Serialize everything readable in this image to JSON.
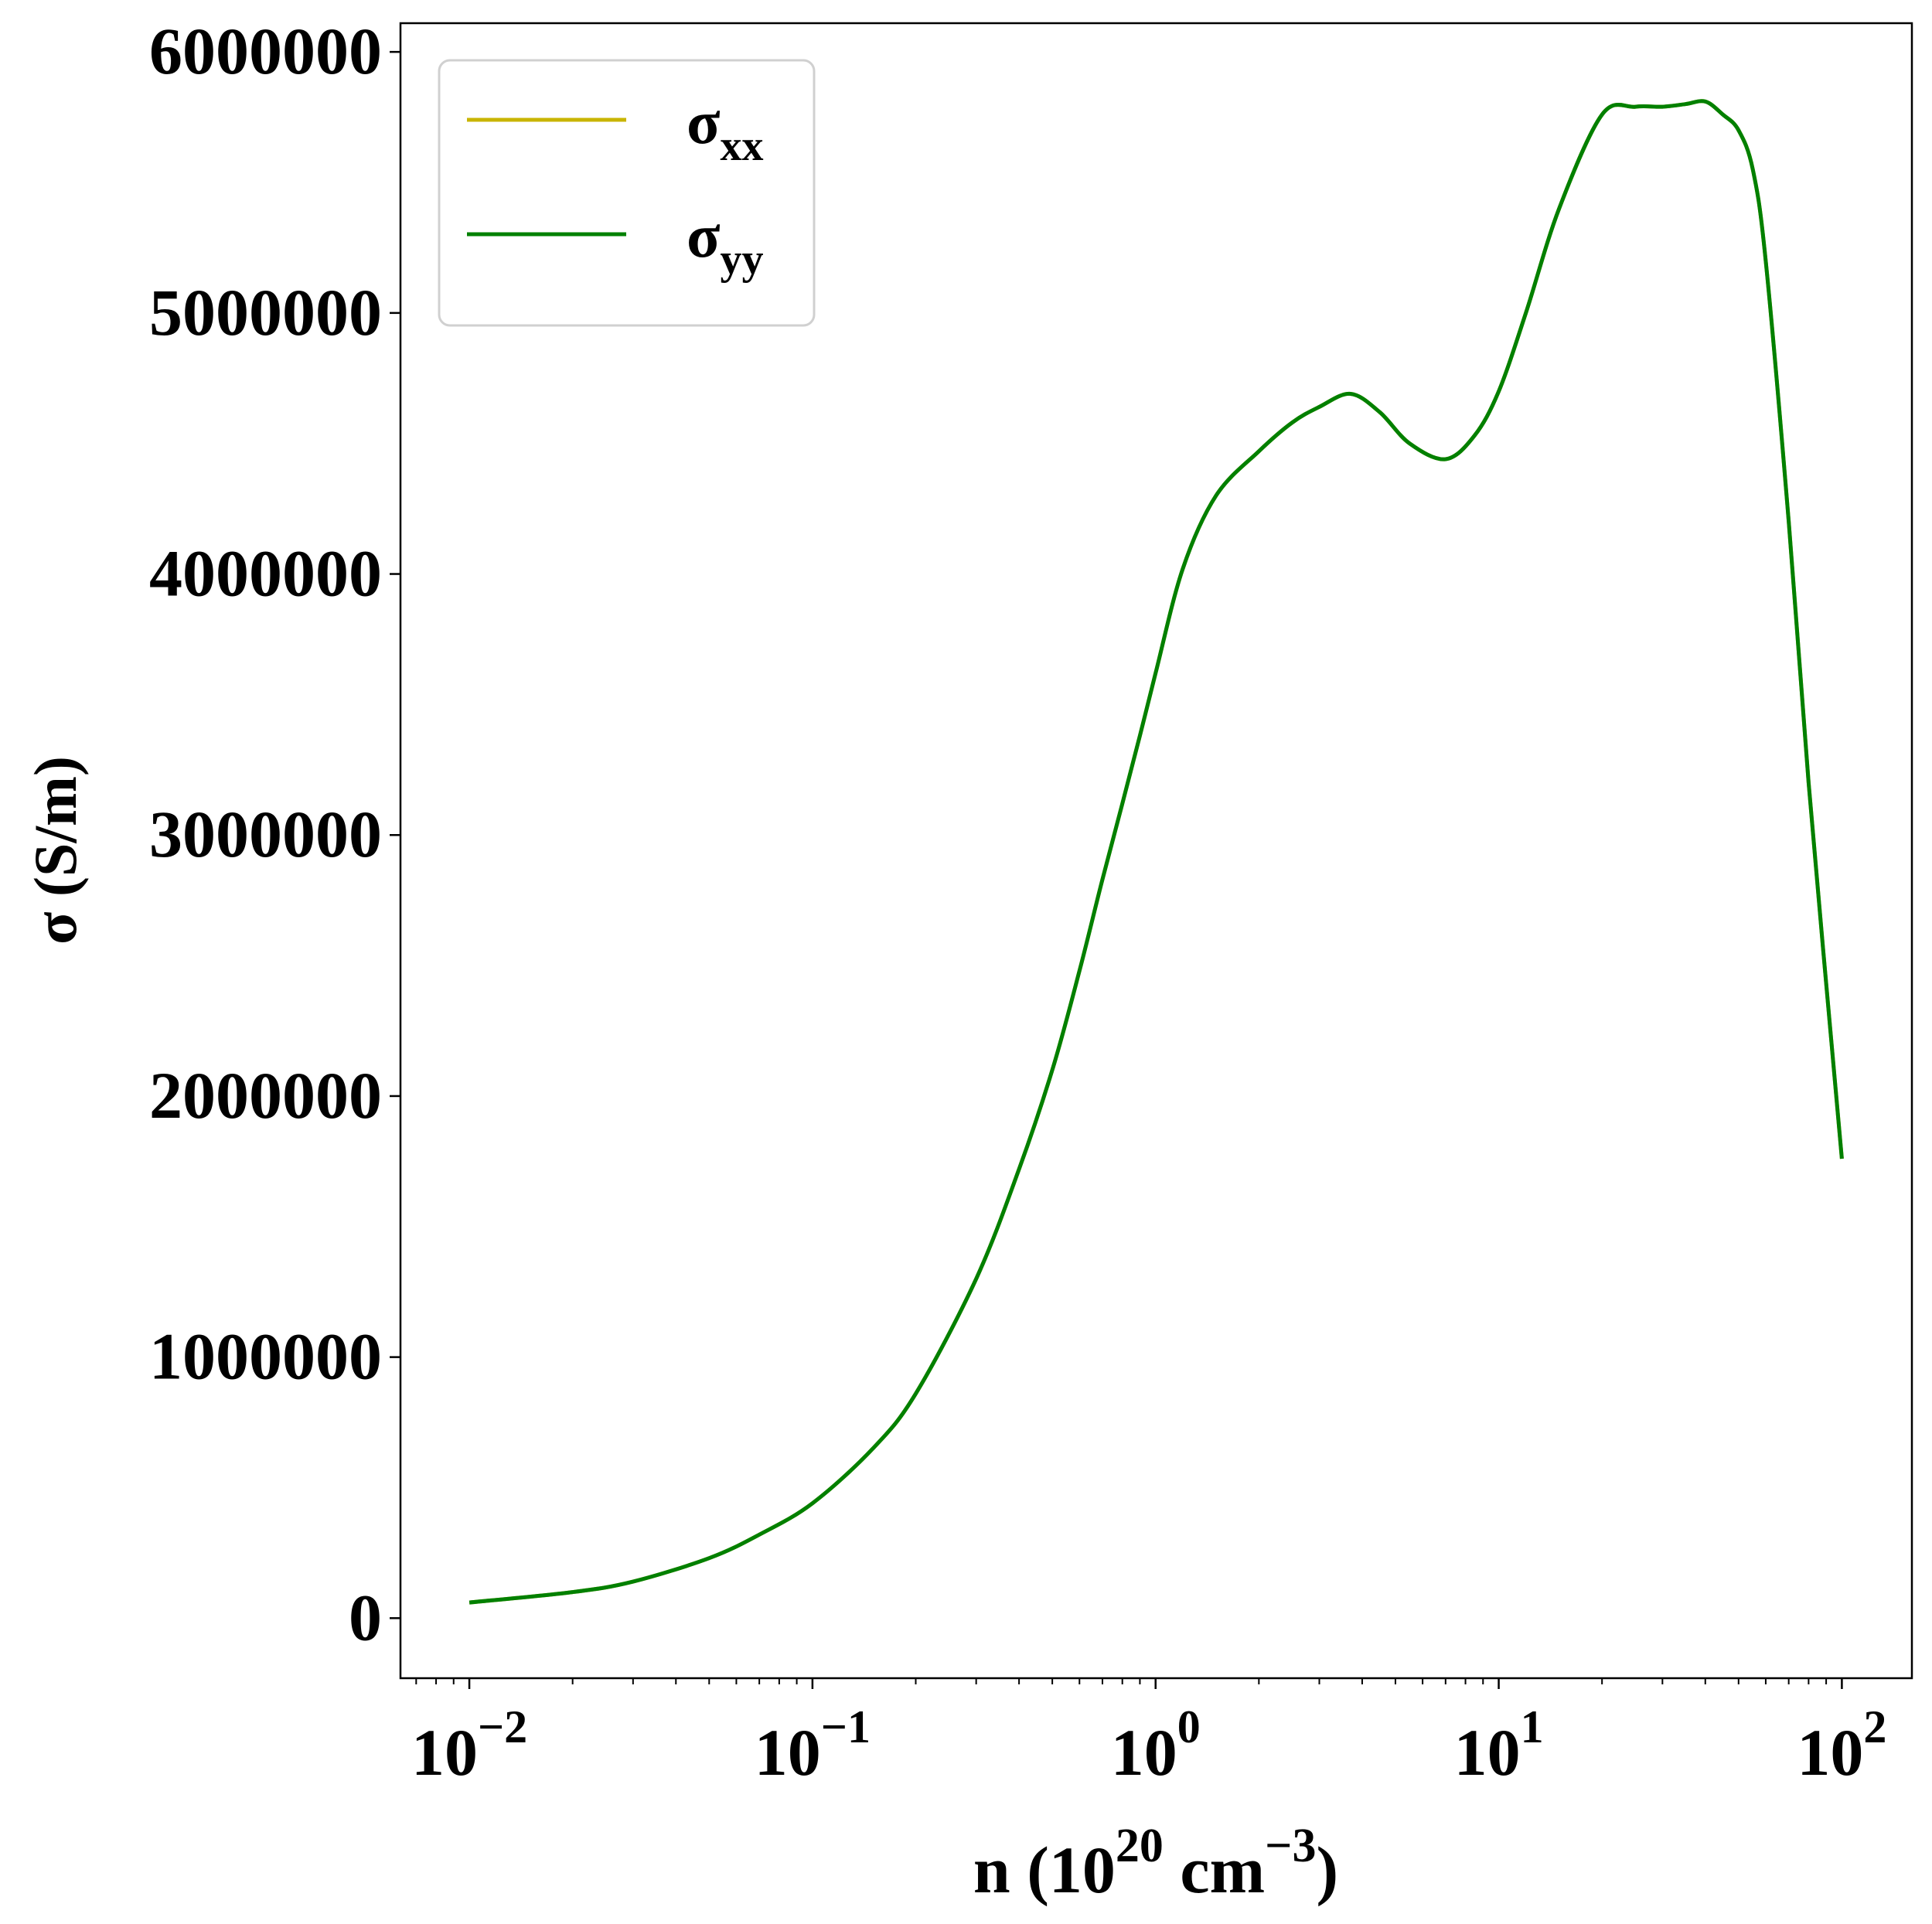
{
  "chart_data": {
    "type": "line",
    "xlabel": {
      "base": "n (10",
      "sup1": "20",
      "mid": " cm",
      "sup2": "−3",
      "end": ")"
    },
    "ylabel": "σ (S/m)",
    "xscale": "log",
    "xlim": [
      0.0063,
      160
    ],
    "ylim": [
      -230000,
      6110000
    ],
    "x_ticks": [
      {
        "value": 0.01,
        "base": "10",
        "exp": "−2"
      },
      {
        "value": 0.1,
        "base": "10",
        "exp": "−1"
      },
      {
        "value": 1,
        "base": "10",
        "exp": "0"
      },
      {
        "value": 10,
        "base": "10",
        "exp": "1"
      },
      {
        "value": 100,
        "base": "10",
        "exp": "2"
      }
    ],
    "y_ticks": [
      {
        "value": 0,
        "label": "0"
      },
      {
        "value": 1000000,
        "label": "1000000"
      },
      {
        "value": 2000000,
        "label": "2000000"
      },
      {
        "value": 3000000,
        "label": "3000000"
      },
      {
        "value": 4000000,
        "label": "4000000"
      },
      {
        "value": 5000000,
        "label": "5000000"
      },
      {
        "value": 6000000,
        "label": "6000000"
      }
    ],
    "grid": false,
    "legend_position": "upper-left",
    "series": [
      {
        "name": "σ",
        "name_sub": "xx",
        "color": "#c8b400",
        "x": [
          0.01,
          0.02,
          0.03,
          0.05,
          0.07,
          0.1,
          0.15,
          0.2,
          0.3,
          0.4,
          0.5,
          0.6,
          0.7,
          0.8,
          0.9,
          1.0,
          1.2,
          1.5,
          2.0,
          2.5,
          3.0,
          3.7,
          4.5,
          5.5,
          7.0,
          8.5,
          10,
          12,
          15,
          20,
          25,
          30,
          35,
          40,
          45,
          50,
          55,
          60,
          70,
          80,
          100
        ],
        "y": [
          60000,
          100000,
          140000,
          230000,
          320000,
          440000,
          650000,
          860000,
          1300000,
          1720000,
          2100000,
          2480000,
          2830000,
          3120000,
          3380000,
          3620000,
          4020000,
          4300000,
          4470000,
          4580000,
          4640000,
          4690000,
          4620000,
          4500000,
          4440000,
          4530000,
          4700000,
          5000000,
          5400000,
          5760000,
          5790000,
          5790000,
          5800000,
          5810000,
          5760000,
          5700000,
          5550000,
          5200000,
          4200000,
          3200000,
          1760000
        ]
      },
      {
        "name": "σ",
        "name_sub": "yy",
        "color": "#008000",
        "x": [
          0.01,
          0.02,
          0.03,
          0.05,
          0.07,
          0.1,
          0.15,
          0.2,
          0.3,
          0.4,
          0.5,
          0.6,
          0.7,
          0.8,
          0.9,
          1.0,
          1.2,
          1.5,
          2.0,
          2.5,
          3.0,
          3.7,
          4.5,
          5.5,
          7.0,
          8.5,
          10,
          12,
          15,
          20,
          25,
          30,
          35,
          40,
          45,
          50,
          55,
          60,
          70,
          80,
          100
        ],
        "y": [
          60000,
          100000,
          140000,
          230000,
          320000,
          440000,
          650000,
          860000,
          1300000,
          1720000,
          2100000,
          2480000,
          2830000,
          3120000,
          3380000,
          3620000,
          4020000,
          4300000,
          4470000,
          4580000,
          4640000,
          4690000,
          4620000,
          4500000,
          4440000,
          4530000,
          4700000,
          5000000,
          5400000,
          5760000,
          5790000,
          5790000,
          5800000,
          5810000,
          5760000,
          5700000,
          5550000,
          5200000,
          4200000,
          3200000,
          1760000
        ]
      }
    ]
  }
}
